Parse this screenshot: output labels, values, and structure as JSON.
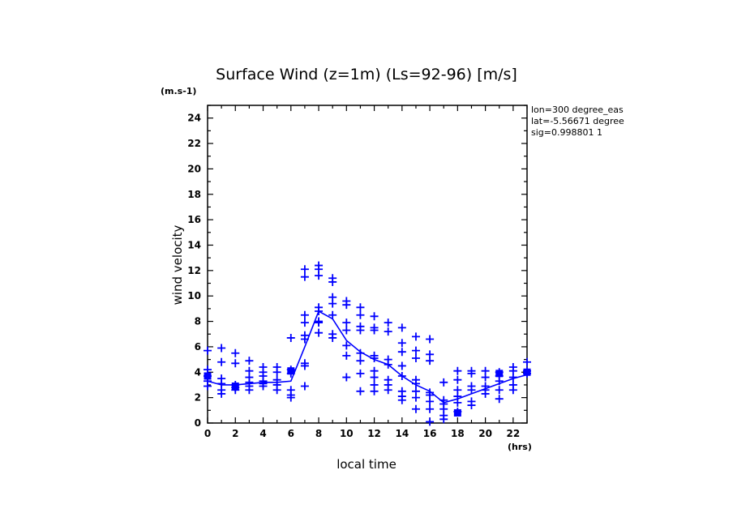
{
  "chart_data": {
    "type": "scatter",
    "title": "Surface Wind (z=1m) (Ls=92-96) [m/s]",
    "y_unit": "(m.s-1)",
    "x_unit": "(hrs)",
    "xlabel": "local time",
    "ylabel": "wind velocity",
    "xlim": [
      0,
      23
    ],
    "ylim": [
      0,
      25
    ],
    "x_ticks": [
      "0",
      "2",
      "4",
      "6",
      "8",
      "10",
      "12",
      "14",
      "16",
      "18",
      "20",
      "22"
    ],
    "y_ticks": [
      "0",
      "2",
      "4",
      "6",
      "8",
      "10",
      "12",
      "14",
      "16",
      "18",
      "20",
      "22",
      "24"
    ],
    "grid": false,
    "info_lines": [
      "lon=300 degree_eas",
      "lat=-5.56671 degree",
      "sig=0.998801 1"
    ],
    "series_color": "#0000ff",
    "mean": {
      "x": [
        0,
        1,
        2,
        3,
        4,
        5,
        6,
        7,
        8,
        9,
        10,
        11,
        12,
        13,
        14,
        15,
        16,
        17,
        18,
        19,
        20,
        21,
        22,
        23
      ],
      "y": [
        3.3,
        3.0,
        3.0,
        3.1,
        3.2,
        3.2,
        3.3,
        6.0,
        8.8,
        8.2,
        6.5,
        5.6,
        5.0,
        4.6,
        3.7,
        3.0,
        2.5,
        1.6,
        1.9,
        2.3,
        2.7,
        3.1,
        3.5,
        3.8
      ]
    },
    "samples": [
      {
        "x": 0,
        "y": [
          5.7,
          4.2,
          3.7,
          3.3,
          2.9
        ]
      },
      {
        "x": 1,
        "y": [
          5.9,
          4.8,
          3.5,
          3.1,
          2.6,
          2.3
        ]
      },
      {
        "x": 2,
        "y": [
          5.5,
          4.7,
          3.0,
          2.8,
          2.6
        ]
      },
      {
        "x": 3,
        "y": [
          4.9,
          4.1,
          3.6,
          3.2,
          2.9,
          2.6
        ]
      },
      {
        "x": 4,
        "y": [
          4.4,
          4.0,
          3.7,
          3.3,
          3.1,
          2.9
        ]
      },
      {
        "x": 5,
        "y": [
          4.4,
          4.0,
          3.4,
          3.0,
          2.6
        ]
      },
      {
        "x": 6,
        "y": [
          6.7,
          4.2,
          3.9,
          2.6,
          2.2,
          2.0
        ]
      },
      {
        "x": 7,
        "y": [
          12.1,
          11.5,
          8.5,
          7.9,
          6.9,
          6.6,
          4.7,
          4.5,
          2.9
        ]
      },
      {
        "x": 8,
        "y": [
          12.4,
          12.1,
          11.6,
          9.1,
          8.8,
          8.0,
          7.9,
          7.1
        ]
      },
      {
        "x": 9,
        "y": [
          11.4,
          11.1,
          9.9,
          9.4,
          8.5,
          7.0,
          6.7
        ]
      },
      {
        "x": 10,
        "y": [
          9.6,
          9.3,
          7.9,
          7.3,
          6.1,
          5.3,
          3.6
        ]
      },
      {
        "x": 11,
        "y": [
          9.1,
          8.5,
          7.6,
          7.3,
          5.5,
          4.9,
          3.9,
          2.5
        ]
      },
      {
        "x": 12,
        "y": [
          8.4,
          7.5,
          7.3,
          5.3,
          5.1,
          4.1,
          3.6,
          3.0,
          2.5
        ]
      },
      {
        "x": 13,
        "y": [
          7.9,
          7.2,
          5.0,
          4.6,
          3.4,
          3.0,
          2.6
        ]
      },
      {
        "x": 14,
        "y": [
          7.5,
          6.3,
          5.6,
          4.5,
          3.7,
          2.5,
          2.1,
          1.8
        ]
      },
      {
        "x": 15,
        "y": [
          6.8,
          5.7,
          5.1,
          3.4,
          3.1,
          2.5,
          2.0,
          1.1
        ]
      },
      {
        "x": 16,
        "y": [
          6.6,
          5.4,
          4.9,
          2.4,
          2.2,
          1.7,
          1.1,
          0.1
        ]
      },
      {
        "x": 17,
        "y": [
          3.2,
          1.8,
          1.5,
          1.1,
          0.6,
          0.3
        ]
      },
      {
        "x": 18,
        "y": [
          4.1,
          3.4,
          2.6,
          2.1,
          1.6,
          0.9
        ]
      },
      {
        "x": 19,
        "y": [
          4.1,
          3.9,
          2.9,
          2.6,
          1.7,
          1.4
        ]
      },
      {
        "x": 20,
        "y": [
          4.1,
          3.6,
          2.9,
          2.6,
          2.3
        ]
      },
      {
        "x": 21,
        "y": [
          4.0,
          3.7,
          3.3,
          2.6,
          1.9
        ]
      },
      {
        "x": 22,
        "y": [
          4.4,
          4.1,
          3.6,
          3.0,
          2.6
        ]
      },
      {
        "x": 23,
        "y": [
          4.8,
          4.1,
          3.9
        ]
      }
    ],
    "highlighted": [
      {
        "x": 0,
        "y": 3.7
      },
      {
        "x": 2,
        "y": 2.9
      },
      {
        "x": 6,
        "y": 4.1
      },
      {
        "x": 18,
        "y": 0.8
      },
      {
        "x": 21,
        "y": 3.9
      },
      {
        "x": 23,
        "y": 4.0
      }
    ]
  }
}
